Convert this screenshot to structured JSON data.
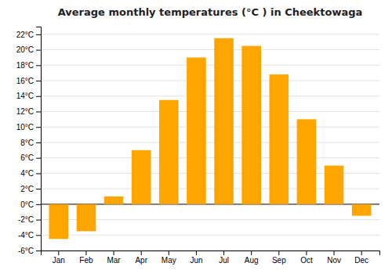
{
  "chart_data": {
    "type": "bar",
    "title": "Average monthly temperatures (°C ) in Cheektowaga",
    "categories": [
      "Jan",
      "Feb",
      "Mar",
      "Apr",
      "May",
      "Jun",
      "Jul",
      "Aug",
      "Sep",
      "Oct",
      "Nov",
      "Dec"
    ],
    "values": [
      -4.5,
      -3.5,
      1.0,
      7.0,
      13.5,
      19.0,
      21.5,
      20.5,
      16.8,
      11.0,
      5.0,
      -1.5
    ],
    "color": "#FFA500",
    "ylim": [
      -6,
      23
    ],
    "yticks": [
      {
        "value": -6,
        "label": "-6°C"
      },
      {
        "value": -4,
        "label": "-4°C"
      },
      {
        "value": -2,
        "label": "-2°C"
      },
      {
        "value": 0,
        "label": "0°C"
      },
      {
        "value": 2,
        "label": "2°C"
      },
      {
        "value": 4,
        "label": "4°C"
      },
      {
        "value": 6,
        "label": "6°C"
      },
      {
        "value": 8,
        "label": "8°C"
      },
      {
        "value": 10,
        "label": "10°C"
      },
      {
        "value": 12,
        "label": "12°C"
      },
      {
        "value": 14,
        "label": "14°C"
      },
      {
        "value": 16,
        "label": "16°C"
      },
      {
        "value": 18,
        "label": "18°C"
      },
      {
        "value": 20,
        "label": "20°C"
      },
      {
        "value": 22,
        "label": "22°C"
      }
    ],
    "grid": true
  }
}
